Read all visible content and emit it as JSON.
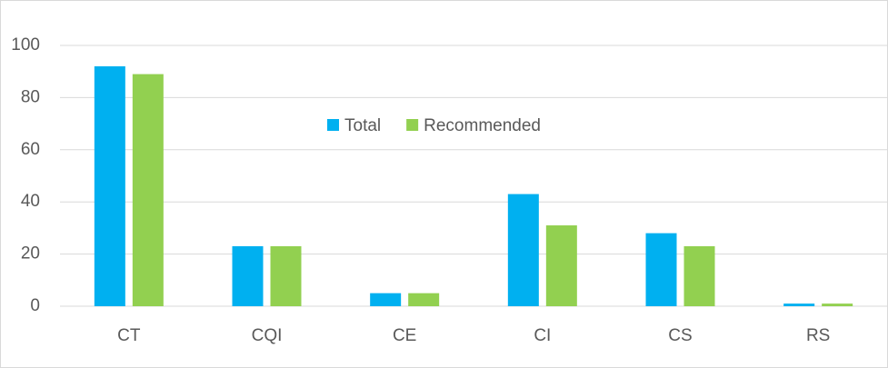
{
  "chart_data": {
    "type": "bar",
    "categories": [
      "CT",
      "CQI",
      "CE",
      "CI",
      "CS",
      "RS"
    ],
    "series": [
      {
        "name": "Total",
        "color": "#00b0f0",
        "values": [
          92,
          23,
          5,
          43,
          28,
          1
        ]
      },
      {
        "name": "Recommended",
        "color": "#92d050",
        "values": [
          89,
          23,
          5,
          31,
          23,
          1
        ]
      }
    ],
    "ylim": [
      0,
      100
    ],
    "yticks": [
      0,
      20,
      40,
      60,
      80,
      100
    ],
    "grid": true,
    "legend": "center"
  }
}
